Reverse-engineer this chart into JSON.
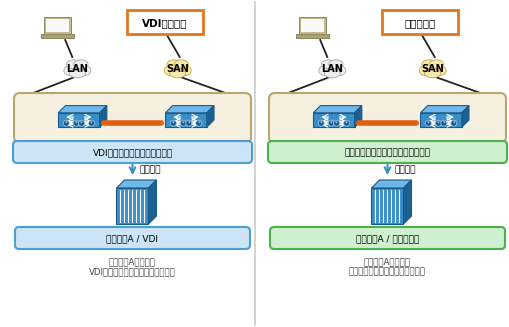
{
  "bg_color": "#ffffff",
  "divider_color": "#cccccc",
  "left_panel": {
    "top_label": "VDIシステム",
    "top_label_color": "#e07820",
    "cloud_lan_label": "LAN",
    "cloud_san_label": "SAN",
    "service_profile_label": "VDI用のサービスプロファイル",
    "service_profile_border": "#4a9fd4",
    "service_profile_bg": "#cce4f5",
    "assign_label": "割り当て",
    "blade_label": "ブレードA / VDI",
    "blade_border": "#4a9fd4",
    "blade_bg": "#cce4f5",
    "bottom_text_line1": "ブレードAは日中、",
    "bottom_text_line2": "VDIシステムのサーバとして仮稼動",
    "switch_box_border": "#b8a870",
    "switch_box_bg": "#f5f0e0"
  },
  "right_panel": {
    "top_label": "バッチ処理",
    "top_label_color": "#e07820",
    "cloud_lan_label": "LAN",
    "cloud_san_label": "SAN",
    "service_profile_label": "バッチ処理用サービスプロファイル",
    "service_profile_border": "#4ab04a",
    "service_profile_bg": "#cff0cf",
    "assign_label": "割り当て",
    "blade_label": "ブレードA / バッチ処理",
    "blade_border": "#4ab04a",
    "blade_bg": "#cff0cf",
    "bottom_text_line1": "ブレードAは夜間、",
    "bottom_text_line2": "バッチ処理のサーバとして仮稼動",
    "switch_box_border": "#b8a870",
    "switch_box_bg": "#f5f0e0"
  },
  "arrow_color": "#3a8fc0",
  "orange_cable_color": "#e06010",
  "font_size_label": 7.0,
  "font_size_small": 6.5,
  "font_size_box": 6.5,
  "font_size_bottom": 6.2
}
